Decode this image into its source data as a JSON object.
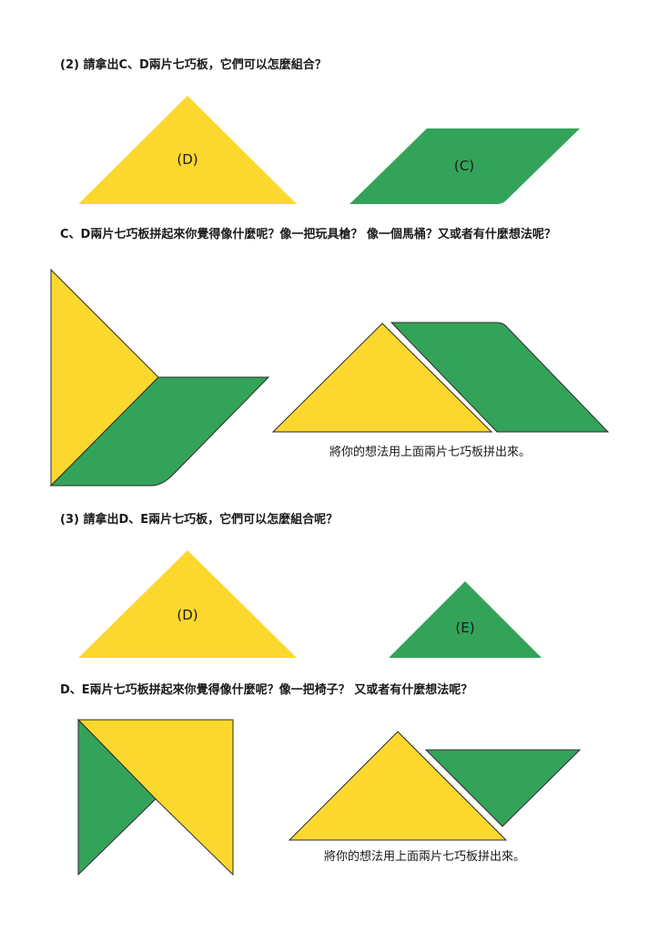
{
  "colors": {
    "yellow": "#FCD82F",
    "green": "#34A35A",
    "outline": "#2b2b2b"
  },
  "section2": {
    "question": "(2) 請拿出C、D兩片七巧板，它們可以怎麼組合？",
    "label_d": "(D)",
    "label_c": "(C)",
    "prompt": "C、D兩片七巧板拼起來你覺得像什麼呢？像一把玩具槍？ 像一個馬桶？又或者有什麼想法呢？",
    "caption": "將你的想法用上面兩片七巧板拼出來。"
  },
  "section3": {
    "question": "(3) 請拿出D、E兩片七巧板，它們可以怎麼組合呢？",
    "label_d": "(D)",
    "label_e": "(E)",
    "prompt": "D、E兩片七巧板拼起來你覺得像什麼呢？像一把椅子？ 又或者有什麼想法呢？",
    "caption": "將你的想法用上面兩片七巧板拼出來。"
  }
}
